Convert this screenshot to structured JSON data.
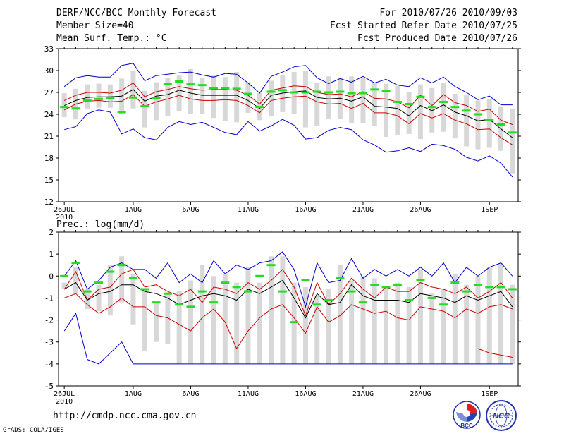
{
  "header": {
    "title": "DERF/NCC/BCC Monthly Forecast",
    "member_size": "Member Size=40",
    "variable": "Mean Surf. Temp.: °C",
    "for_period": "For 2010/07/26-2010/09/03",
    "fcst_started": "Fcst Started Refer Date 2010/07/25",
    "fcst_produced": "Fcst Produced Date 2010/07/26"
  },
  "footer": {
    "url": "http://cmdp.ncc.cma.gov.cn",
    "grads": "GrADS: COLA/IGES",
    "logo_left_label": "BCC",
    "logo_right_label": "NCC"
  },
  "colors": {
    "max_min": "#0000cc",
    "percentile": "#cc0000",
    "median": "#000000",
    "observation": "#22dd22",
    "spread_bar": "#d8d8d8"
  },
  "x_ticks": [
    {
      "day": 0,
      "label": "26JUL"
    },
    {
      "day": 6,
      "label": "1AUG"
    },
    {
      "day": 11,
      "label": "6AUG"
    },
    {
      "day": 16,
      "label": "11AUG"
    },
    {
      "day": 21,
      "label": "16AUG"
    },
    {
      "day": 26,
      "label": "21AUG"
    },
    {
      "day": 31,
      "label": "26AUG"
    },
    {
      "day": 37,
      "label": "1SEP"
    }
  ],
  "x_year": "2010",
  "chart_data": [
    {
      "type": "line",
      "title": "Mean Surf. Temp.: °C",
      "xlabel": "",
      "ylabel": "",
      "xlim": [
        -0.5,
        39.5
      ],
      "ylim": [
        12,
        33
      ],
      "yticks": [
        12,
        15,
        18,
        21,
        24,
        27,
        30,
        33
      ],
      "x": [
        0,
        1,
        2,
        3,
        4,
        5,
        6,
        7,
        8,
        9,
        10,
        11,
        12,
        13,
        14,
        15,
        16,
        17,
        18,
        19,
        20,
        21,
        22,
        23,
        24,
        25,
        26,
        27,
        28,
        29,
        30,
        31,
        32,
        33,
        34,
        35,
        36,
        37,
        38,
        39
      ],
      "series": [
        {
          "name": "max",
          "values": [
            27.8,
            29.0,
            29.3,
            29.1,
            29.1,
            30.7,
            31.0,
            28.6,
            29.3,
            29.5,
            29.7,
            29.8,
            29.4,
            29.1,
            29.6,
            29.5,
            28.3,
            26.9,
            29.2,
            29.8,
            30.5,
            30.7,
            29.0,
            28.2,
            28.9,
            28.4,
            29.2,
            28.3,
            28.8,
            28.0,
            27.8,
            29.0,
            28.3,
            29.1,
            27.8,
            27.0,
            26.0,
            26.5,
            25.3,
            25.3
          ]
        },
        {
          "name": "upper_percentile",
          "values": [
            25.9,
            26.6,
            27.0,
            27.0,
            26.9,
            27.3,
            28.3,
            26.4,
            27.1,
            27.4,
            27.8,
            27.5,
            27.3,
            27.4,
            27.4,
            27.3,
            26.6,
            25.4,
            27.3,
            27.6,
            27.9,
            27.8,
            27.0,
            26.7,
            26.8,
            26.4,
            27.1,
            26.2,
            26.1,
            25.7,
            24.9,
            26.6,
            25.2,
            26.7,
            25.6,
            25.2,
            24.4,
            24.7,
            23.2,
            22.6
          ]
        },
        {
          "name": "median",
          "values": [
            25.2,
            25.9,
            26.3,
            26.4,
            26.4,
            26.5,
            27.4,
            25.8,
            26.5,
            26.7,
            27.3,
            26.9,
            26.6,
            26.6,
            26.6,
            26.6,
            25.9,
            24.8,
            26.6,
            26.9,
            27.1,
            27.2,
            26.3,
            26.1,
            26.2,
            25.8,
            26.4,
            25.1,
            25.0,
            24.8,
            23.8,
            25.2,
            24.5,
            25.3,
            24.3,
            23.8,
            23.1,
            23.3,
            22.0,
            20.8
          ]
        },
        {
          "name": "lower_percentile",
          "values": [
            24.6,
            25.4,
            25.8,
            25.9,
            25.7,
            25.8,
            26.7,
            25.1,
            25.7,
            26.1,
            26.6,
            26.1,
            25.9,
            25.9,
            26.0,
            25.9,
            25.2,
            24.2,
            25.9,
            26.2,
            26.4,
            26.5,
            25.7,
            25.4,
            25.5,
            24.8,
            25.5,
            24.2,
            24.2,
            23.8,
            22.7,
            24.1,
            23.5,
            24.1,
            23.2,
            22.7,
            21.9,
            22.0,
            20.8,
            19.8
          ]
        },
        {
          "name": "min",
          "values": [
            21.9,
            22.3,
            24.1,
            24.6,
            24.3,
            21.3,
            22.0,
            20.8,
            20.5,
            22.2,
            23.0,
            22.6,
            22.9,
            22.2,
            21.5,
            21.2,
            23.0,
            21.7,
            22.4,
            23.3,
            22.5,
            20.6,
            20.8,
            21.8,
            22.2,
            21.9,
            20.5,
            19.8,
            18.8,
            19.0,
            19.4,
            18.9,
            19.9,
            19.7,
            19.2,
            18.1,
            17.6,
            18.3,
            17.3,
            15.4
          ]
        },
        {
          "name": "observation",
          "values": [
            25.0,
            24.8,
            25.9,
            26.1,
            26.2,
            24.3,
            26.3,
            25.1,
            26.2,
            28.2,
            28.5,
            28.1,
            28.0,
            27.6,
            27.6,
            27.5,
            26.8,
            25.0,
            27.1,
            27.3,
            27.0,
            27.0,
            27.1,
            27.0,
            27.1,
            26.9,
            26.9,
            27.4,
            27.2,
            25.7,
            25.4,
            26.4,
            25.0,
            25.7,
            25.0,
            24.5,
            24.0,
            23.2,
            22.6,
            21.5
          ]
        }
      ],
      "spread_bars": {
        "low": [
          23.6,
          23.3,
          24.7,
          24.9,
          24.9,
          24.1,
          24.8,
          22.2,
          23.2,
          23.7,
          24.4,
          24.1,
          24.0,
          23.5,
          23.1,
          22.9,
          24.2,
          23.2,
          23.7,
          24.3,
          24.0,
          22.2,
          22.4,
          23.4,
          23.4,
          22.8,
          22.8,
          22.4,
          20.9,
          21.1,
          21.3,
          20.6,
          21.5,
          21.6,
          20.7,
          19.6,
          19.2,
          19.4,
          19.0,
          15.9
        ],
        "high": [
          26.9,
          27.5,
          28.1,
          28.2,
          28.1,
          28.9,
          29.9,
          27.2,
          28.4,
          29.0,
          29.3,
          30.2,
          29.0,
          29.3,
          29.1,
          29.8,
          28.4,
          26.9,
          28.6,
          29.4,
          29.8,
          29.9,
          28.3,
          29.2,
          29.0,
          29.2,
          29.0,
          28.3,
          28.2,
          27.9,
          27.1,
          28.1,
          27.6,
          28.3,
          26.8,
          26.6,
          25.9,
          26.1,
          25.1,
          24.8
        ]
      }
    },
    {
      "type": "line",
      "title": "Prec.: log(mm/d)",
      "xlabel": "",
      "ylabel": "",
      "xlim": [
        -0.5,
        39.5
      ],
      "ylim": [
        -5,
        2
      ],
      "yticks": [
        -5,
        -4,
        -3,
        -2,
        -1,
        0,
        1,
        2
      ],
      "x": [
        0,
        1,
        2,
        3,
        4,
        5,
        6,
        7,
        8,
        9,
        10,
        11,
        12,
        13,
        14,
        15,
        16,
        17,
        18,
        19,
        20,
        21,
        22,
        23,
        24,
        25,
        26,
        27,
        28,
        29,
        30,
        31,
        32,
        33,
        34,
        35,
        36,
        37,
        38,
        39
      ],
      "series": [
        {
          "name": "max",
          "values": [
            0.0,
            0.7,
            -0.6,
            -0.2,
            0.4,
            0.6,
            0.3,
            0.3,
            -0.1,
            0.6,
            -0.3,
            0.1,
            -0.3,
            0.7,
            0.1,
            0.5,
            0.3,
            0.6,
            0.7,
            1.1,
            0.3,
            -1.4,
            0.6,
            -0.3,
            -0.2,
            0.8,
            -0.1,
            0.3,
            0.0,
            0.3,
            0.0,
            0.4,
            0.0,
            0.6,
            -0.3,
            0.4,
            0.0,
            0.4,
            0.6,
            0.0
          ]
        },
        {
          "name": "upper_percentile",
          "values": [
            -0.6,
            0.2,
            -1.1,
            -0.6,
            -0.5,
            0.1,
            0.3,
            -0.5,
            -0.4,
            -0.7,
            -0.9,
            -0.6,
            -1.2,
            -0.5,
            -0.6,
            -0.8,
            -0.3,
            -0.6,
            -0.2,
            0.3,
            -0.5,
            -1.8,
            -0.3,
            -1.3,
            -0.8,
            -0.1,
            -0.6,
            -1.0,
            -0.5,
            -0.7,
            -0.7,
            -0.3,
            -0.5,
            -0.6,
            -0.8,
            -0.5,
            -1.0,
            -0.7,
            -0.3,
            -1.0
          ]
        },
        {
          "name": "median",
          "values": [
            -0.6,
            -0.3,
            -1.1,
            -0.8,
            -0.7,
            -0.4,
            -0.4,
            -0.7,
            -0.8,
            -1.0,
            -1.3,
            -1.1,
            -0.9,
            -0.8,
            -0.9,
            -1.1,
            -0.6,
            -0.8,
            -0.5,
            -0.2,
            -1.0,
            -1.9,
            -0.8,
            -1.3,
            -1.2,
            -0.4,
            -0.9,
            -1.1,
            -1.1,
            -1.1,
            -1.2,
            -0.8,
            -0.9,
            -1.0,
            -1.2,
            -0.9,
            -1.1,
            -0.9,
            -0.7,
            -1.4
          ]
        },
        {
          "name": "lower_percentile",
          "values": [
            -1.0,
            -0.8,
            -1.3,
            -1.7,
            -1.4,
            -1.0,
            -1.4,
            -1.4,
            -1.8,
            -1.9,
            -2.2,
            -2.5,
            -1.9,
            -1.5,
            -2.1,
            -3.3,
            -2.5,
            -1.9,
            -1.5,
            -1.3,
            -1.9,
            -2.6,
            -1.4,
            -2.1,
            -1.8,
            -1.3,
            -1.5,
            -1.7,
            -1.6,
            -1.9,
            -2.0,
            -1.4,
            -1.5,
            -1.6,
            -1.9,
            -1.5,
            -1.7,
            -1.4,
            -1.3,
            -1.5
          ]
        },
        {
          "name": "min",
          "values": [
            -2.5,
            -1.7,
            -3.8,
            -4.0,
            -3.5,
            -3.0,
            -4.0,
            -4.0,
            -4.0,
            -4.0,
            -4.0,
            -4.0,
            -4.0,
            -4.0,
            -4.0,
            -4.0,
            -4.0,
            -4.0,
            -4.0,
            -4.0,
            -4.0,
            -4.0,
            -4.0,
            -4.0,
            -4.0,
            -4.0,
            -4.0,
            -4.0,
            -4.0,
            -4.0,
            -4.0,
            -4.0,
            -4.0,
            -4.0,
            -4.0,
            -4.0,
            -4.0,
            -4.0,
            -4.0,
            -4.0
          ]
        },
        {
          "name": "upper_extra",
          "values": [
            null,
            null,
            null,
            null,
            null,
            null,
            null,
            null,
            null,
            null,
            null,
            null,
            null,
            null,
            null,
            null,
            null,
            null,
            null,
            null,
            null,
            null,
            null,
            null,
            null,
            null,
            null,
            null,
            null,
            null,
            null,
            null,
            null,
            null,
            null,
            null,
            -3.3,
            -3.5,
            -3.6,
            -3.7
          ]
        },
        {
          "name": "observation",
          "values": [
            0.0,
            0.6,
            -0.7,
            -0.3,
            0.2,
            0.5,
            -0.1,
            -0.6,
            -1.2,
            -0.8,
            -1.3,
            -1.4,
            -0.7,
            -1.2,
            -0.3,
            -0.5,
            -0.7,
            0.0,
            0.5,
            -0.7,
            -2.1,
            -0.2,
            -1.3,
            -1.1,
            -0.1,
            -0.7,
            -1.2,
            -0.4,
            -0.5,
            -0.4,
            -1.1,
            -0.2,
            -1.0,
            -1.3,
            -0.3,
            -0.7,
            -0.4,
            -0.5,
            -0.5,
            -0.6
          ]
        }
      ],
      "spread_bars": {
        "low": [
          -0.6,
          -0.8,
          -1.5,
          -1.6,
          -1.8,
          -1.2,
          -2.2,
          -3.4,
          -3.0,
          -3.1,
          -4.0,
          -4.0,
          -4.0,
          -4.0,
          -4.0,
          -4.0,
          -4.0,
          -4.0,
          -4.0,
          -4.0,
          -4.0,
          -4.0,
          -4.0,
          -4.0,
          -4.0,
          -4.0,
          -4.0,
          -4.0,
          -4.0,
          -4.0,
          -4.0,
          -4.0,
          -4.0,
          -4.0,
          -4.0,
          -4.0,
          -4.0,
          -4.0,
          -4.0,
          -4.0
        ],
        "high": [
          -0.3,
          0.4,
          -0.6,
          -0.4,
          0.5,
          0.9,
          0.1,
          -0.6,
          -1.2,
          -0.8,
          -0.7,
          -0.2,
          0.5,
          0.0,
          0.1,
          -0.3,
          0.4,
          -0.3,
          0.9,
          0.9,
          -0.3,
          -0.5,
          -0.9,
          -0.6,
          0.5,
          -0.2,
          0.0,
          -0.1,
          -0.5,
          -0.3,
          -0.5,
          0.3,
          -0.8,
          -0.6,
          0.1,
          -0.4,
          0.0,
          0.4,
          0.6,
          -0.4
        ]
      }
    }
  ]
}
